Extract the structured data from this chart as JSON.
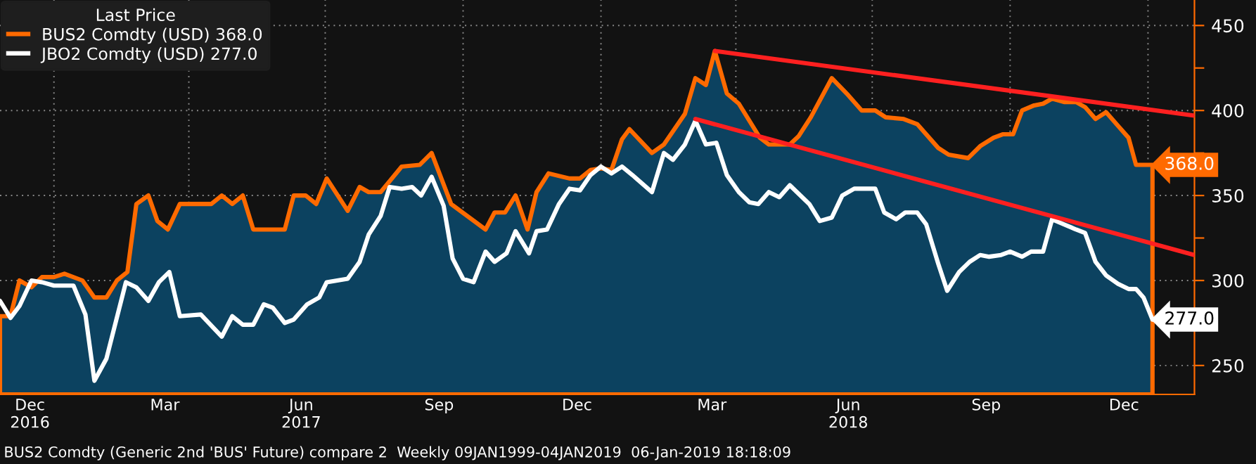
{
  "chart_data": {
    "type": "line",
    "legend_title": "Last Price",
    "legend": "top left",
    "grid": true,
    "xlim": [
      "2016-11-26",
      "2019-02-01"
    ],
    "xticks": [
      {
        "value": "2016-12-16",
        "label": "Dec\n2016"
      },
      {
        "value": "2017-03-16",
        "label": "Mar"
      },
      {
        "value": "2017-06-15",
        "label": "Jun\n2017"
      },
      {
        "value": "2017-09-15",
        "label": "Sep"
      },
      {
        "value": "2017-12-16",
        "label": "Dec"
      },
      {
        "value": "2018-03-16",
        "label": "Mar"
      },
      {
        "value": "2018-06-15",
        "label": "Jun\n2018"
      },
      {
        "value": "2018-09-15",
        "label": "Sep"
      },
      {
        "value": "2018-12-16",
        "label": "Dec"
      },
      {
        "value": "2017-01-01",
        "label": null
      },
      {
        "value": "2017-04-01",
        "label": null
      },
      {
        "value": "2017-07-01",
        "label": null
      },
      {
        "value": "2017-10-01",
        "label": null
      },
      {
        "value": "2018-01-01",
        "label": null
      },
      {
        "value": "2018-04-01",
        "label": null
      },
      {
        "value": "2018-07-01",
        "label": null
      },
      {
        "value": "2018-10-01",
        "label": null
      },
      {
        "value": "2019-01-01",
        "label": null
      }
    ],
    "ylim": [
      233,
      465
    ],
    "yticks": [
      250,
      {
        "value": 275,
        "label": null
      },
      300,
      {
        "value": 325,
        "label": null
      },
      350,
      {
        "value": 375,
        "label": null
      },
      400,
      {
        "value": 425,
        "label": null
      },
      450
    ],
    "series": [
      {
        "name": "BUS2 Comdty (USD) 368.0",
        "type": "area",
        "color": "#ff6a00",
        "x": [
          "2016-11-26",
          "2016-12-03",
          "2016-12-09",
          "2016-12-17",
          "2016-12-24",
          "2017-01-01",
          "2017-01-08",
          "2017-01-20",
          "2017-01-28",
          "2017-02-05",
          "2017-02-12",
          "2017-02-19",
          "2017-02-25",
          "2017-03-05",
          "2017-03-11",
          "2017-03-18",
          "2017-03-26",
          "2017-04-16",
          "2017-04-23",
          "2017-04-30",
          "2017-05-07",
          "2017-05-14",
          "2017-06-04",
          "2017-06-10",
          "2017-06-18",
          "2017-06-25",
          "2017-07-02",
          "2017-07-16",
          "2017-07-24",
          "2017-07-30",
          "2017-08-07",
          "2017-08-21",
          "2017-09-02",
          "2017-09-10",
          "2017-09-23",
          "2017-10-16",
          "2017-10-22",
          "2017-10-29",
          "2017-11-05",
          "2017-11-13",
          "2017-11-19",
          "2017-11-27",
          "2017-12-11",
          "2017-12-18",
          "2017-12-25",
          "2018-01-01",
          "2018-01-08",
          "2018-01-15",
          "2018-01-20",
          "2018-02-04",
          "2018-02-12",
          "2018-02-26",
          "2018-03-05",
          "2018-03-12",
          "2018-03-18",
          "2018-03-26",
          "2018-04-03",
          "2018-04-17",
          "2018-04-23",
          "2018-05-07",
          "2018-05-13",
          "2018-05-21",
          "2018-06-04",
          "2018-06-15",
          "2018-06-24",
          "2018-07-03",
          "2018-07-10",
          "2018-07-22",
          "2018-07-31",
          "2018-08-14",
          "2018-08-21",
          "2018-09-03",
          "2018-09-11",
          "2018-09-20",
          "2018-09-26",
          "2018-10-03",
          "2018-10-09",
          "2018-10-17",
          "2018-10-23",
          "2018-10-29",
          "2018-11-06",
          "2018-11-14",
          "2018-11-20",
          "2018-11-27",
          "2018-12-04",
          "2018-12-12",
          "2018-12-19",
          "2018-12-24",
          "2019-01-04"
        ],
        "values": [
          279,
          279,
          300,
          296,
          302,
          302,
          304,
          300,
          290,
          290,
          300,
          305,
          345,
          350,
          335,
          330,
          345,
          345,
          350,
          345,
          350,
          330,
          330,
          350,
          350,
          345,
          360,
          341,
          355,
          352,
          352,
          367,
          368,
          375,
          345,
          330,
          340,
          340,
          350,
          330,
          352,
          363,
          360,
          360,
          365,
          366,
          365,
          383,
          389,
          375,
          380,
          398,
          419,
          415,
          435,
          410,
          404,
          384,
          380,
          380,
          385,
          396,
          419,
          409,
          400,
          400,
          396,
          395,
          392,
          378,
          374,
          372,
          379,
          384,
          386,
          386,
          400,
          403,
          404,
          407,
          405,
          405,
          402,
          395,
          399,
          391,
          384,
          368,
          368
        ],
        "value_labels": [
          null,
          null,
          null,
          null,
          null,
          null,
          null,
          null,
          null,
          null,
          null,
          null,
          null,
          null,
          null,
          null,
          null,
          null,
          null,
          null,
          null,
          null,
          null,
          null,
          null,
          null,
          null,
          null,
          null,
          null,
          null,
          null,
          null,
          null,
          null,
          null,
          null,
          null,
          null,
          null,
          null,
          null,
          null,
          null,
          null,
          null,
          null,
          null,
          null,
          null,
          null,
          null,
          null,
          null,
          null,
          null,
          null,
          null,
          null,
          null,
          null,
          null,
          null,
          null,
          null,
          null,
          null,
          null,
          null,
          null,
          null,
          null,
          null,
          null,
          null,
          null,
          null,
          null,
          null,
          null,
          null,
          null,
          null,
          null,
          null,
          null,
          null,
          null,
          "368.0"
        ]
      },
      {
        "name": "JBO2 Comdty (USD) 277.0",
        "color": "#ffffff",
        "x": [
          "2016-11-26",
          "2016-12-03",
          "2016-12-09",
          "2016-12-17",
          "2016-12-24",
          "2017-01-01",
          "2017-01-14",
          "2017-01-22",
          "2017-01-28",
          "2017-02-05",
          "2017-02-18",
          "2017-02-25",
          "2017-03-05",
          "2017-03-12",
          "2017-03-19",
          "2017-03-26",
          "2017-04-09",
          "2017-04-23",
          "2017-04-30",
          "2017-05-07",
          "2017-05-14",
          "2017-05-21",
          "2017-05-27",
          "2017-06-04",
          "2017-06-10",
          "2017-06-19",
          "2017-06-27",
          "2017-07-02",
          "2017-07-16",
          "2017-07-24",
          "2017-07-30",
          "2017-08-07",
          "2017-08-13",
          "2017-08-21",
          "2017-08-28",
          "2017-09-03",
          "2017-09-10",
          "2017-09-18",
          "2017-09-24",
          "2017-10-01",
          "2017-10-08",
          "2017-10-16",
          "2017-10-22",
          "2017-10-30",
          "2017-11-05",
          "2017-11-14",
          "2017-11-19",
          "2017-11-26",
          "2017-12-04",
          "2017-12-11",
          "2017-12-18",
          "2017-12-25",
          "2018-01-01",
          "2018-01-08",
          "2018-01-15",
          "2018-01-22",
          "2018-02-04",
          "2018-02-12",
          "2018-02-18",
          "2018-02-26",
          "2018-03-05",
          "2018-03-12",
          "2018-03-19",
          "2018-03-26",
          "2018-04-03",
          "2018-04-10",
          "2018-04-16",
          "2018-04-23",
          "2018-04-30",
          "2018-05-07",
          "2018-05-20",
          "2018-05-27",
          "2018-06-04",
          "2018-06-11",
          "2018-06-19",
          "2018-07-03",
          "2018-07-09",
          "2018-07-17",
          "2018-07-23",
          "2018-07-31",
          "2018-08-06",
          "2018-08-14",
          "2018-08-20",
          "2018-08-28",
          "2018-09-04",
          "2018-09-11",
          "2018-09-17",
          "2018-09-25",
          "2018-10-01",
          "2018-10-09",
          "2018-10-15",
          "2018-10-23",
          "2018-10-29",
          "2018-11-06",
          "2018-11-14",
          "2018-11-20",
          "2018-11-27",
          "2018-12-04",
          "2018-12-12",
          "2018-12-19",
          "2018-12-24",
          "2018-12-29",
          "2019-01-04"
        ],
        "values": [
          288,
          278,
          285,
          300,
          299,
          297,
          297,
          280,
          241,
          254,
          299,
          296,
          288,
          299,
          305,
          279,
          280,
          267,
          279,
          274,
          274,
          286,
          284,
          275,
          277,
          286,
          290,
          299,
          301,
          311,
          327,
          338,
          355,
          354,
          355,
          350,
          361,
          344,
          313,
          301,
          299,
          317,
          311,
          316,
          329,
          316,
          329,
          330,
          345,
          354,
          353,
          362,
          367,
          363,
          367,
          362,
          352,
          375,
          371,
          380,
          394,
          380,
          381,
          362,
          352,
          346,
          345,
          352,
          349,
          356,
          345,
          335,
          337,
          350,
          354,
          354,
          340,
          336,
          340,
          340,
          333,
          310,
          294,
          305,
          311,
          315,
          314,
          315,
          317,
          314,
          317,
          317,
          336,
          333,
          330,
          328,
          311,
          303,
          298,
          295,
          295,
          290,
          277
        ],
        "value_labels": [
          null,
          null,
          null,
          null,
          null,
          null,
          null,
          null,
          null,
          null,
          null,
          null,
          null,
          null,
          null,
          null,
          null,
          null,
          null,
          null,
          null,
          null,
          null,
          null,
          null,
          null,
          null,
          null,
          null,
          null,
          null,
          null,
          null,
          null,
          null,
          null,
          null,
          null,
          null,
          null,
          null,
          null,
          null,
          null,
          null,
          null,
          null,
          null,
          null,
          null,
          null,
          null,
          null,
          null,
          null,
          null,
          null,
          null,
          null,
          null,
          null,
          null,
          null,
          null,
          null,
          null,
          null,
          null,
          null,
          null,
          null,
          null,
          null,
          null,
          null,
          null,
          null,
          null,
          null,
          null,
          null,
          null,
          null,
          null,
          null,
          null,
          null,
          null,
          null,
          null,
          null,
          null,
          null,
          null,
          null,
          null,
          null,
          null,
          null,
          null,
          null,
          null,
          "277.0"
        ]
      },
      {
        "color": "#ff2020",
        "x": [
          "2018-03-18",
          "2019-02-01"
        ],
        "values": [
          435,
          397
        ]
      },
      {
        "color": "#ff2020",
        "x": [
          "2018-03-05",
          "2019-02-01"
        ],
        "values": [
          395,
          315
        ]
      }
    ],
    "annotations": [
      "BUS2 Comdty (Generic 2nd 'BUS' Future) compare 2  Weekly 09JAN1999-04JAN2019  06-Jan-2019 18:18:09"
    ]
  }
}
